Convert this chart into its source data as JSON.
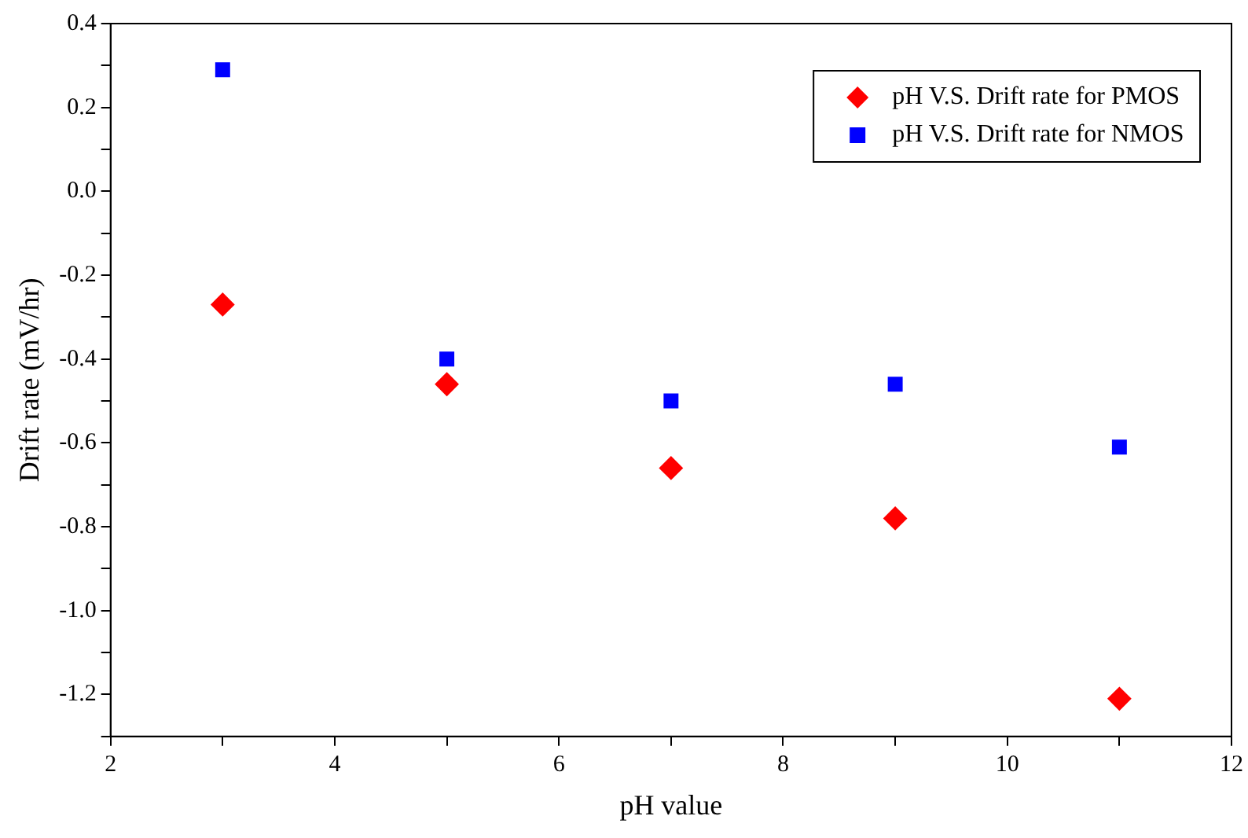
{
  "chart_data": {
    "type": "scatter",
    "xlabel": "pH value",
    "ylabel": "Drift rate (mV/hr)",
    "x": [
      3,
      5,
      7,
      9,
      11
    ],
    "series": [
      {
        "name": "pH V.S. Drift rate for PMOS",
        "color": "#ff0000",
        "marker": "diamond",
        "values": [
          -0.27,
          -0.46,
          -0.66,
          -0.78,
          -1.21
        ]
      },
      {
        "name": "pH V.S. Drift rate for NMOS",
        "color": "#0000ff",
        "marker": "square",
        "values": [
          0.29,
          -0.4,
          -0.5,
          -0.46,
          -0.61
        ]
      }
    ],
    "xlim": [
      2,
      12
    ],
    "xticks": [
      2,
      {
        "value": 3,
        "label": null
      },
      4,
      {
        "value": 5,
        "label": null
      },
      6,
      {
        "value": 7,
        "label": null
      },
      8,
      {
        "value": 9,
        "label": null
      },
      10,
      {
        "value": 11,
        "label": null
      },
      12
    ],
    "ylim": [
      -1.3,
      0.4
    ],
    "yticks": [
      {
        "value": -1.3,
        "label": null
      },
      -1.2,
      {
        "value": -1.1,
        "label": null
      },
      {
        "value": -1,
        "label": "-1.0"
      },
      {
        "value": -0.9,
        "label": null
      },
      -0.8,
      {
        "value": -0.7,
        "label": null
      },
      -0.6,
      {
        "value": -0.5,
        "label": null
      },
      -0.4,
      {
        "value": -0.3,
        "label": null
      },
      -0.2,
      {
        "value": -0.1,
        "label": null
      },
      {
        "value": 0,
        "label": "0.0"
      },
      {
        "value": 0.1,
        "label": null
      },
      0.2,
      {
        "value": 0.3,
        "label": null
      },
      0.4
    ],
    "grid": false,
    "legend": "top right"
  }
}
